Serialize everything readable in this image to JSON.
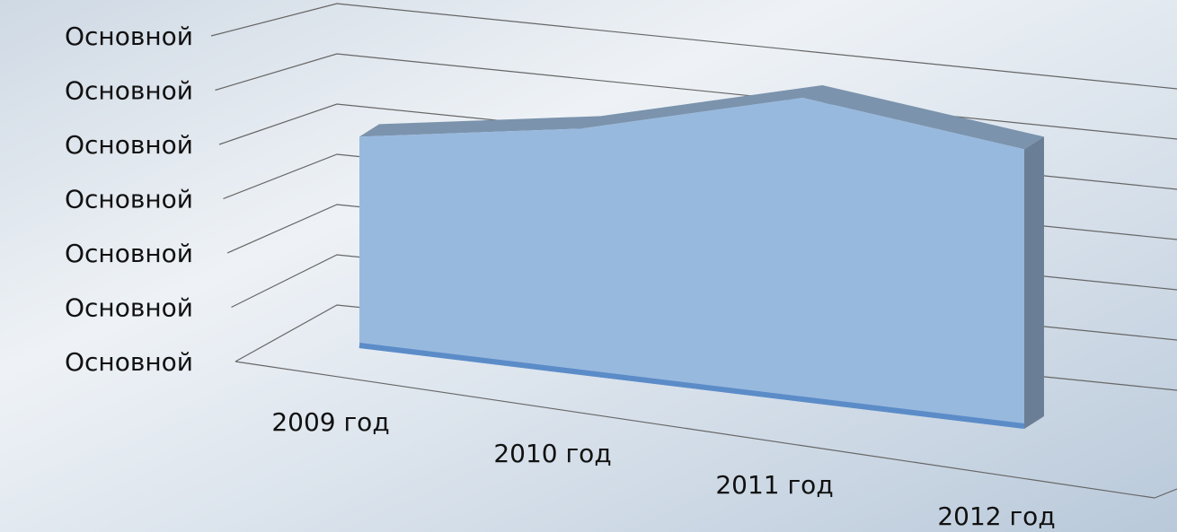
{
  "chart_data": {
    "type": "area3d",
    "categories": [
      "2009 год",
      "2010 год",
      "2011 год",
      "2012 год"
    ],
    "values": [
      3.8,
      4.0,
      4.5,
      3.8
    ],
    "color": "#98b9de",
    "ylim": [
      0,
      6
    ],
    "yticks": [
      {
        "value": 0,
        "label": "Основной"
      },
      {
        "value": 1,
        "label": "Основной"
      },
      {
        "value": 2,
        "label": "Основной"
      },
      {
        "value": 3,
        "label": "Основной"
      },
      {
        "value": 4,
        "label": "Основной"
      },
      {
        "value": 5,
        "label": "Основной"
      },
      {
        "value": 6,
        "label": "Основной"
      }
    ],
    "grid": true
  }
}
